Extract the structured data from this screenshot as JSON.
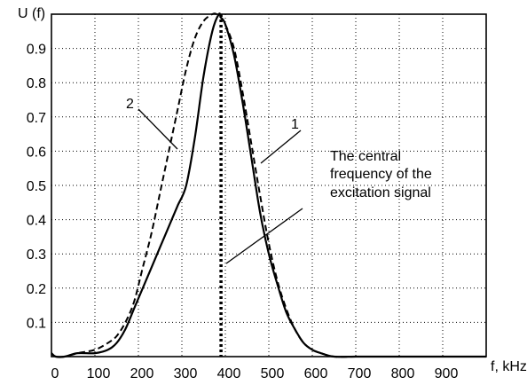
{
  "chart_data": {
    "type": "line",
    "title": "",
    "xlabel": "f, kHz",
    "ylabel": "U (f)",
    "xlim": [
      0,
      1000
    ],
    "ylim": [
      0,
      1
    ],
    "xticks": [
      0,
      100,
      200,
      300,
      400,
      500,
      600,
      700,
      800,
      900
    ],
    "yticks": [
      0.1,
      0.2,
      0.3,
      0.4,
      0.5,
      0.6,
      0.7,
      0.8,
      0.9
    ],
    "grid": true,
    "series": [
      {
        "label": "1",
        "style": "solid",
        "color": "#000000",
        "x": [
          0,
          10,
          30,
          60,
          100,
          130,
          150,
          170,
          190,
          210,
          230,
          250,
          270,
          290,
          310,
          330,
          350,
          370,
          385,
          390,
          400,
          420,
          440,
          460,
          480,
          500,
          520,
          540,
          560,
          580,
          600,
          620,
          650,
          700,
          750,
          800,
          850,
          900,
          1000
        ],
        "y": [
          0.01,
          0.0,
          0.0,
          0.01,
          0.01,
          0.02,
          0.04,
          0.08,
          0.14,
          0.2,
          0.26,
          0.32,
          0.38,
          0.44,
          0.5,
          0.64,
          0.82,
          0.95,
          1.0,
          0.99,
          0.97,
          0.88,
          0.74,
          0.58,
          0.42,
          0.3,
          0.21,
          0.13,
          0.08,
          0.04,
          0.02,
          0.01,
          0.0,
          0.0,
          0.0,
          0.0,
          0.0,
          0.0,
          0.0
        ]
      },
      {
        "label": "2",
        "style": "dashed",
        "color": "#000000",
        "x": [
          0,
          10,
          30,
          60,
          100,
          130,
          150,
          170,
          190,
          210,
          230,
          250,
          270,
          290,
          310,
          330,
          350,
          370,
          380,
          390,
          400,
          420,
          440,
          460,
          480,
          500,
          520,
          540,
          560,
          580,
          600,
          620,
          650,
          700,
          750,
          800,
          850,
          900,
          1000
        ],
        "y": [
          0.01,
          0.0,
          0.0,
          0.01,
          0.02,
          0.04,
          0.06,
          0.1,
          0.16,
          0.26,
          0.36,
          0.48,
          0.6,
          0.72,
          0.84,
          0.93,
          0.98,
          1.0,
          1.0,
          0.99,
          0.97,
          0.9,
          0.77,
          0.62,
          0.47,
          0.33,
          0.22,
          0.14,
          0.08,
          0.04,
          0.02,
          0.01,
          0.0,
          0.0,
          0.0,
          0.0,
          0.0,
          0.0,
          0.0
        ]
      }
    ],
    "vline": {
      "x": 390,
      "style": "dotted"
    },
    "annotations": [
      {
        "text": "1",
        "target_series": 0
      },
      {
        "text": "2",
        "target_series": 1
      },
      {
        "lines": [
          "The central",
          "frequency of the",
          "excitation signal"
        ]
      }
    ]
  }
}
